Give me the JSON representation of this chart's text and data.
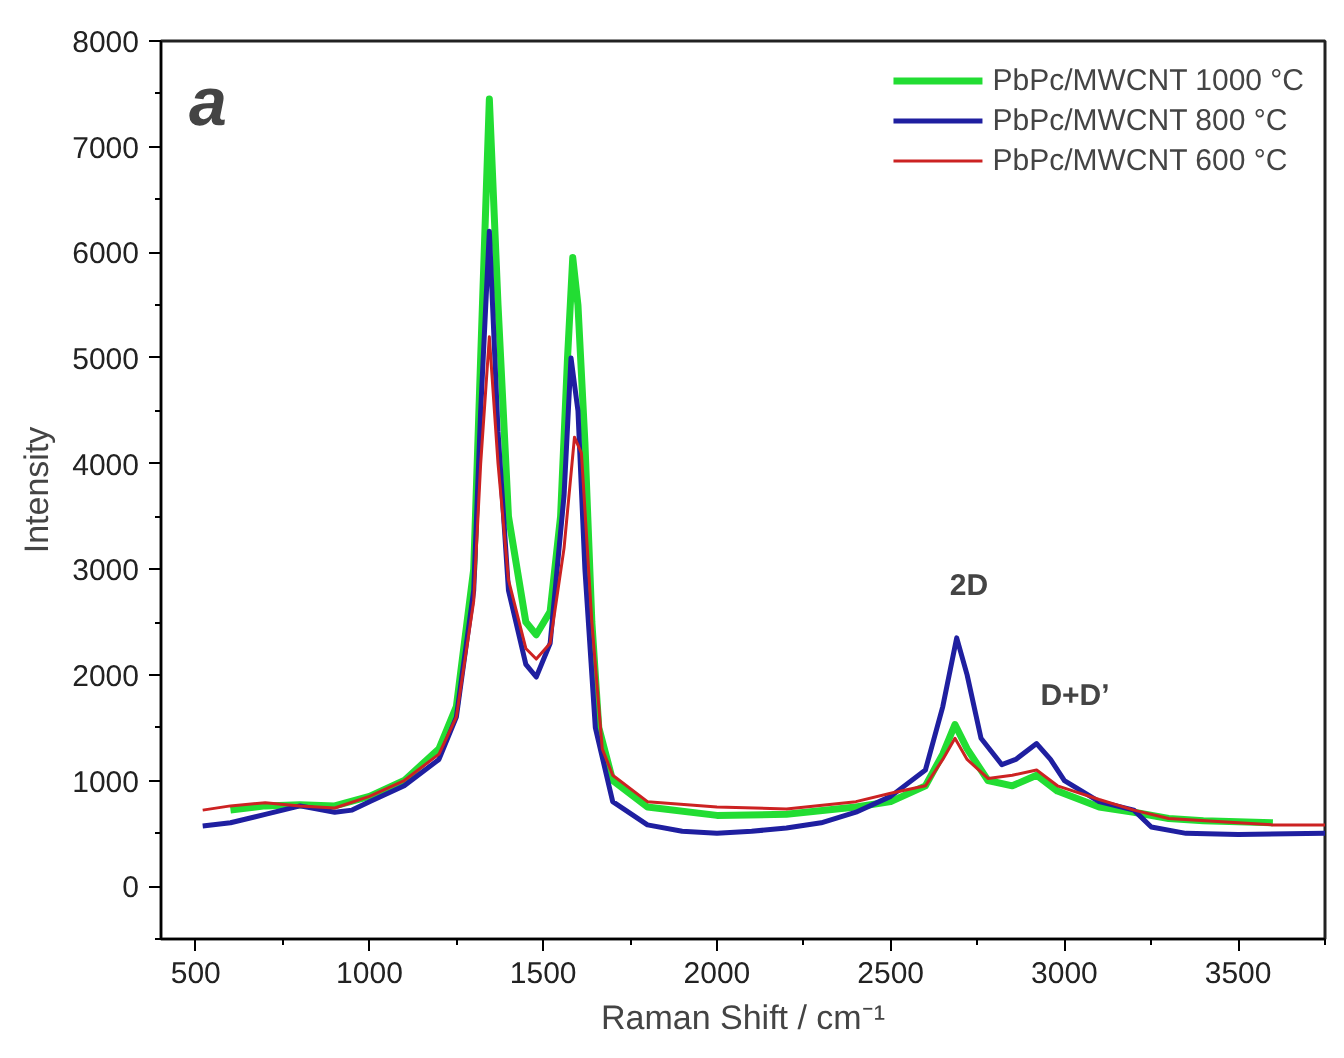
{
  "chart_data": {
    "type": "line",
    "xlabel": "Raman Shift / cm⁻¹",
    "ylabel": "Intensity",
    "annotations": [
      "a",
      "2D",
      "D+D’"
    ],
    "xlim": [
      400,
      3750
    ],
    "ylim": [
      -500,
      8000
    ],
    "xticks": [
      500,
      1000,
      1500,
      2000,
      2500,
      3000,
      3500
    ],
    "yticks": [
      0,
      1000,
      2000,
      3000,
      4000,
      5000,
      6000,
      7000,
      8000
    ],
    "grid": false,
    "legend": "top right",
    "marker": "none",
    "line_style": "solid",
    "series": [
      {
        "name": "PbPc/MWCNT 1000 °C",
        "color": "#22dd33",
        "x": [
          600,
          700,
          800,
          900,
          1000,
          1100,
          1200,
          1250,
          1300,
          1320,
          1345,
          1370,
          1400,
          1450,
          1480,
          1520,
          1550,
          1570,
          1585,
          1600,
          1620,
          1640,
          1660,
          1700,
          1800,
          2000,
          2200,
          2400,
          2500,
          2600,
          2650,
          2685,
          2720,
          2780,
          2850,
          2920,
          2980,
          3100,
          3200,
          3300,
          3400,
          3600
        ],
        "values": [
          720,
          760,
          770,
          760,
          850,
          1000,
          1300,
          1700,
          3000,
          5000,
          7450,
          5500,
          3500,
          2500,
          2380,
          2600,
          3500,
          5000,
          5950,
          5500,
          4200,
          2500,
          1500,
          1000,
          750,
          670,
          680,
          750,
          800,
          950,
          1250,
          1530,
          1300,
          1000,
          950,
          1050,
          900,
          750,
          700,
          640,
          620,
          600
        ]
      },
      {
        "name": "PbPc/MWCNT 800 °C",
        "color": "#1f1fa0",
        "x": [
          520,
          600,
          700,
          800,
          900,
          950,
          1000,
          1100,
          1200,
          1250,
          1300,
          1320,
          1345,
          1370,
          1400,
          1450,
          1480,
          1520,
          1560,
          1580,
          1600,
          1620,
          1650,
          1700,
          1800,
          1900,
          2000,
          2100,
          2200,
          2300,
          2400,
          2500,
          2600,
          2650,
          2690,
          2720,
          2760,
          2820,
          2860,
          2920,
          2960,
          3000,
          3100,
          3200,
          3250,
          3350,
          3500,
          3750
        ],
        "values": [
          570,
          600,
          680,
          760,
          700,
          720,
          800,
          950,
          1200,
          1600,
          2800,
          4500,
          6200,
          4300,
          2800,
          2100,
          1980,
          2300,
          3700,
          5000,
          4500,
          3000,
          1500,
          800,
          580,
          520,
          500,
          520,
          550,
          600,
          700,
          850,
          1100,
          1700,
          2350,
          2000,
          1400,
          1150,
          1200,
          1350,
          1200,
          1000,
          800,
          720,
          560,
          500,
          490,
          500
        ]
      },
      {
        "name": "PbPc/MWCNT 600 °C",
        "color": "#cc2222",
        "x": [
          520,
          600,
          700,
          800,
          900,
          1000,
          1100,
          1200,
          1250,
          1300,
          1320,
          1345,
          1370,
          1400,
          1450,
          1480,
          1520,
          1560,
          1590,
          1610,
          1640,
          1670,
          1700,
          1800,
          2000,
          2200,
          2400,
          2500,
          2600,
          2650,
          2685,
          2720,
          2780,
          2850,
          2920,
          2980,
          3100,
          3200,
          3300,
          3500,
          3600,
          3750
        ],
        "values": [
          720,
          760,
          790,
          760,
          740,
          850,
          1000,
          1250,
          1600,
          2700,
          4000,
          5200,
          4000,
          2900,
          2250,
          2150,
          2300,
          3200,
          4250,
          4100,
          2500,
          1300,
          1050,
          800,
          750,
          730,
          800,
          880,
          950,
          1200,
          1400,
          1200,
          1020,
          1050,
          1100,
          950,
          820,
          720,
          640,
          600,
          580,
          580
        ]
      }
    ]
  }
}
